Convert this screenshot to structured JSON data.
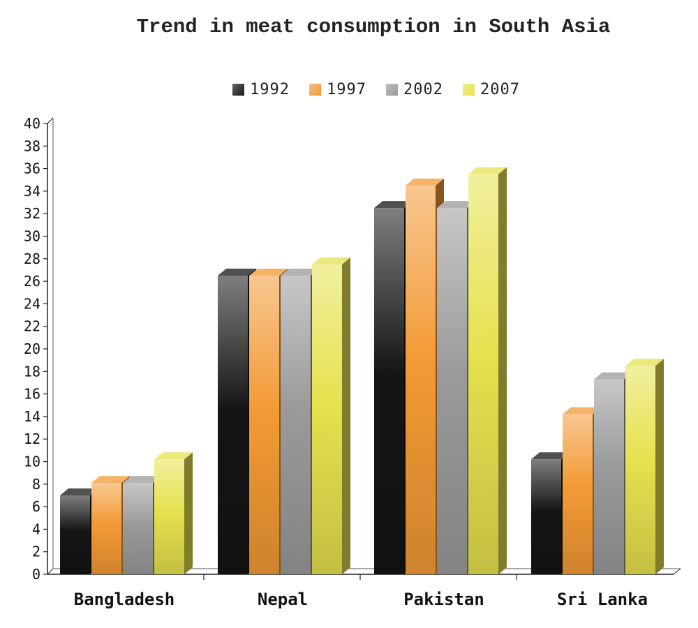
{
  "chart_data": {
    "type": "bar",
    "title": "Trend in meat consumption in South Asia",
    "categories": [
      "Bangladesh",
      "Nepal",
      "Pakistan",
      "Sri Lanka"
    ],
    "series": [
      {
        "name": "1992",
        "values": [
          7,
          26.5,
          32.5,
          10.2
        ],
        "color": "#151515"
      },
      {
        "name": "1997",
        "values": [
          8.1,
          26.5,
          34.5,
          14.2
        ],
        "color": "#f39a35"
      },
      {
        "name": "2002",
        "values": [
          8.1,
          26.5,
          32.5,
          17.3
        ],
        "color": "#9a9a9a"
      },
      {
        "name": "2007",
        "values": [
          10.2,
          27.5,
          35.5,
          18.5
        ],
        "color": "#e6e14e"
      }
    ],
    "ylim": [
      0,
      40
    ],
    "yticks": [
      0,
      2,
      4,
      6,
      8,
      10,
      12,
      14,
      16,
      18,
      20,
      22,
      24,
      26,
      28,
      30,
      32,
      34,
      36,
      38,
      40
    ],
    "legend_position": "top",
    "grid": false
  }
}
